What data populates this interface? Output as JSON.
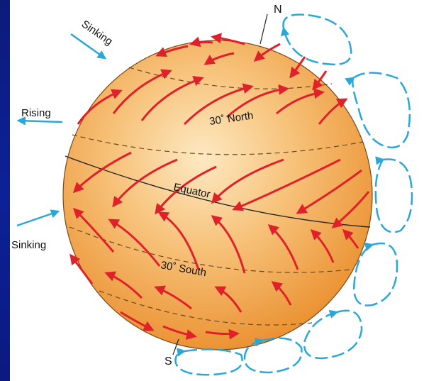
{
  "labels": {
    "north": "N",
    "south": "S",
    "sinking_top": "Sinking",
    "rising": "Rising",
    "sinking_bottom": "Sinking",
    "lat_north": "30˚ North",
    "equator": "Equator",
    "lat_south": "30˚ South"
  },
  "colors": {
    "background": "#0d2196",
    "panel": "#ffffff",
    "sphere_light": "#fde3b0",
    "sphere_dark": "#ef9a3a",
    "wind_arrows": "#e0202a",
    "convection_cells": "#2aa7d8",
    "label_arrows": "#2aa7d8"
  }
}
